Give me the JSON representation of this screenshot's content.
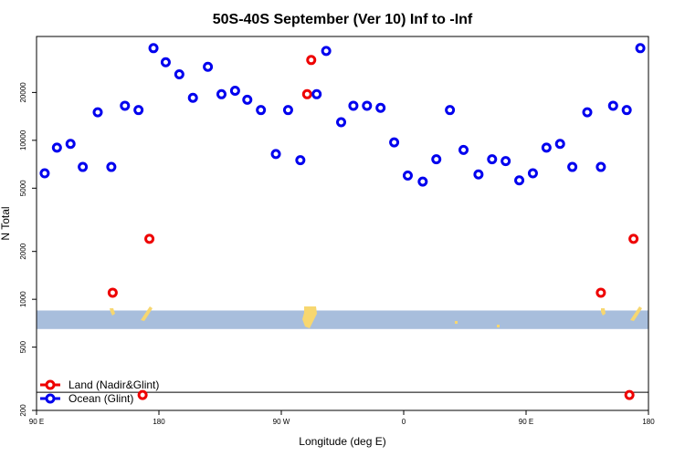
{
  "chart_data": {
    "type": "scatter",
    "title": "50S-40S September (Ver 10)   Inf to -Inf",
    "xlabel": "Longitude (deg E)",
    "ylabel": "N Total",
    "y_scale": "log",
    "ylim": [
      200,
      45000
    ],
    "x_ticks": [
      {
        "value": 90,
        "label": "90 E"
      },
      {
        "value": 180,
        "label": "180"
      },
      {
        "value": 270,
        "label": "90 W"
      },
      {
        "value": 360,
        "label": "0"
      },
      {
        "value": 450,
        "label": "90 E"
      },
      {
        "value": 540,
        "label": "180"
      }
    ],
    "xlim": [
      90,
      540
    ],
    "y_ticks": [
      {
        "value": 200,
        "label": "200"
      },
      {
        "value": 500,
        "label": "500"
      },
      {
        "value": 1000,
        "label": "1000"
      },
      {
        "value": 2000,
        "label": "2000"
      },
      {
        "value": 5000,
        "label": "5000"
      },
      {
        "value": 10000,
        "label": "10000"
      },
      {
        "value": 20000,
        "label": "20000"
      }
    ],
    "grid": false,
    "legend_position": "bottom-left",
    "map_band": {
      "y_top": 850,
      "y_bottom": 650,
      "ocean_color": "#a8bedc",
      "land_color": "#f7d770"
    },
    "reference_line": 260,
    "series": [
      {
        "name": "Land (Nadir&Glint)",
        "color": "#ee0000",
        "points": [
          [
            146,
            1100
          ],
          [
            173,
            2400
          ],
          [
            168,
            250
          ],
          [
            289,
            19500
          ],
          [
            292,
            32000
          ],
          [
            505,
            1100
          ],
          [
            529,
            2400
          ],
          [
            526,
            250
          ]
        ]
      },
      {
        "name": "Ocean (Glint)",
        "color": "#0000ee",
        "points": [
          [
            96,
            6200
          ],
          [
            105,
            9000
          ],
          [
            115,
            9500
          ],
          [
            124,
            6800
          ],
          [
            135,
            15000
          ],
          [
            145,
            6800
          ],
          [
            155,
            16500
          ],
          [
            165,
            15500
          ],
          [
            176,
            38000
          ],
          [
            185,
            31000
          ],
          [
            195,
            26000
          ],
          [
            205,
            18500
          ],
          [
            216,
            29000
          ],
          [
            226,
            19500
          ],
          [
            236,
            20500
          ],
          [
            245,
            18000
          ],
          [
            255,
            15500
          ],
          [
            266,
            8200
          ],
          [
            275,
            15500
          ],
          [
            284,
            7500
          ],
          [
            296,
            19500
          ],
          [
            303,
            36500
          ],
          [
            314,
            13000
          ],
          [
            323,
            16500
          ],
          [
            333,
            16500
          ],
          [
            343,
            16000
          ],
          [
            353,
            9700
          ],
          [
            363,
            6000
          ],
          [
            374,
            5500
          ],
          [
            384,
            7600
          ],
          [
            394,
            15500
          ],
          [
            404,
            8700
          ],
          [
            415,
            6100
          ],
          [
            425,
            7600
          ],
          [
            435,
            7400
          ],
          [
            445,
            5600
          ],
          [
            455,
            6200
          ],
          [
            465,
            9000
          ],
          [
            475,
            9500
          ],
          [
            484,
            6800
          ],
          [
            495,
            15000
          ],
          [
            505,
            6800
          ],
          [
            514,
            16500
          ],
          [
            524,
            15500
          ],
          [
            534,
            38000
          ]
        ]
      }
    ]
  }
}
